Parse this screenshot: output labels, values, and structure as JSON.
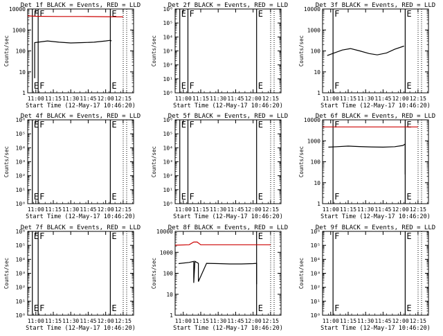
{
  "window": {
    "title": "Det 1f BLACK = Events, RED = LLD"
  },
  "chart_data": [
    {
      "type": "line",
      "title": "Det 1f BLACK = Events, RED = LLD",
      "xlabel": "Start Time (12-May-17 10:46:20)",
      "ylabel": "Counts/sec",
      "yscale": "log",
      "ylim": [
        1,
        10000
      ],
      "y_ticks": [
        "1",
        "10",
        "100",
        "1000",
        "10000"
      ],
      "x_ticks": [
        "11:00",
        "11:15",
        "11:30",
        "11:45",
        "12:00",
        "12:15"
      ],
      "events_color": "#000000",
      "lld_color": "#cc0000",
      "markers": [
        {
          "label": "E",
          "time": "10:57"
        },
        {
          "label": "F",
          "time": "11:02"
        },
        {
          "label": "E",
          "time": "12:04"
        }
      ],
      "series": [
        {
          "name": "Events",
          "x": [
            "10:59",
            "10:59",
            "11:02",
            "11:10",
            "11:20",
            "11:30",
            "11:40",
            "11:50",
            "12:00",
            "12:04",
            "12:05"
          ],
          "y": [
            5,
            250,
            260,
            300,
            260,
            240,
            250,
            260,
            300,
            320,
            300
          ]
        },
        {
          "name": "LLD",
          "x": [
            "10:53",
            "11:00",
            "11:20",
            "11:40",
            "12:00",
            "12:15"
          ],
          "y": [
            4700,
            4500,
            4400,
            4400,
            4300,
            4200
          ]
        }
      ]
    },
    {
      "type": "line",
      "title": "Det 2f BLACK = Events, RED = LLD",
      "xlabel": "Start Time (12-May-17 10:46:20)",
      "ylabel": "Counts/sec",
      "yscale": "log",
      "ylim": [
        1,
        1000000
      ],
      "y_ticks": [
        "10⁰",
        "10¹",
        "10²",
        "10³",
        "10⁴",
        "10⁵",
        "10⁶"
      ],
      "x_ticks": [
        "11:00",
        "11:15",
        "11:30",
        "11:45",
        "12:00",
        "12:15"
      ],
      "events_color": "#000000",
      "lld_color": "#cc0000",
      "markers": [
        {
          "label": "E",
          "time": "10:57"
        },
        {
          "label": "F",
          "time": "11:04"
        },
        {
          "label": "E",
          "time": "12:03"
        }
      ],
      "series": []
    },
    {
      "type": "line",
      "title": "Det 3f BLACK = Events, RED = LLD",
      "xlabel": "Start Time (12-May-17 10:46:20)",
      "ylabel": "Counts/sec",
      "yscale": "log",
      "ylim": [
        1,
        10000
      ],
      "y_ticks": [
        "1",
        "10",
        "100",
        "1000",
        "10000"
      ],
      "x_ticks": [
        "11:00",
        "11:15",
        "11:30",
        "11:45",
        "12:00",
        "12:15"
      ],
      "events_color": "#000000",
      "lld_color": "#cc0000",
      "markers": [
        {
          "label": "F",
          "time": "11:02"
        },
        {
          "label": "E",
          "time": "12:04"
        }
      ],
      "series": [
        {
          "name": "Events",
          "x": [
            "10:57",
            "11:03",
            "11:10",
            "11:17",
            "11:25",
            "11:33",
            "11:40",
            "11:48",
            "11:55",
            "12:03"
          ],
          "y": [
            60,
            80,
            110,
            130,
            100,
            75,
            65,
            80,
            120,
            170
          ]
        }
      ]
    },
    {
      "type": "line",
      "title": "Det 4f BLACK = Events, RED = LLD",
      "xlabel": "Start Time (12-May-17 10:46:20)",
      "ylabel": "Counts/sec",
      "yscale": "log",
      "ylim": [
        1,
        1000000
      ],
      "y_ticks": [
        "10⁰",
        "10¹",
        "10²",
        "10³",
        "10⁴",
        "10⁵",
        "10⁶"
      ],
      "x_ticks": [
        "11:00",
        "11:15",
        "11:30",
        "11:45",
        "12:00",
        "12:15"
      ],
      "events_color": "#000000",
      "lld_color": "#cc0000",
      "markers": [
        {
          "label": "E",
          "time": "10:57"
        },
        {
          "label": "F",
          "time": "11:02"
        },
        {
          "label": "E",
          "time": "12:04"
        }
      ],
      "series": []
    },
    {
      "type": "line",
      "title": "Det 5f BLACK = Events, RED = LLD",
      "xlabel": "Start Time (12-May-17 10:46:20)",
      "ylabel": "Counts/sec",
      "yscale": "log",
      "ylim": [
        1,
        1000000
      ],
      "y_ticks": [
        "10⁰",
        "10¹",
        "10²",
        "10³",
        "10⁴",
        "10⁵",
        "10⁶"
      ],
      "x_ticks": [
        "11:00",
        "11:15",
        "11:30",
        "11:45",
        "12:00",
        "12:15"
      ],
      "events_color": "#000000",
      "lld_color": "#cc0000",
      "markers": [
        {
          "label": "E",
          "time": "10:57"
        },
        {
          "label": "F",
          "time": "11:04"
        },
        {
          "label": "E",
          "time": "12:03"
        }
      ],
      "series": []
    },
    {
      "type": "line",
      "title": "Det 6f BLACK = Events, RED = LLD",
      "xlabel": "Start Time (12-May-17 10:46:20)",
      "ylabel": "Counts/sec",
      "yscale": "log",
      "ylim": [
        1,
        10000
      ],
      "y_ticks": [
        "1",
        "10",
        "100",
        "1000",
        "10000"
      ],
      "x_ticks": [
        "11:00",
        "11:15",
        "11:30",
        "11:45",
        "12:00",
        "12:15"
      ],
      "events_color": "#000000",
      "lld_color": "#cc0000",
      "markers": [
        {
          "label": "F",
          "time": "11:02"
        },
        {
          "label": "E",
          "time": "12:04"
        }
      ],
      "series": [
        {
          "name": "Events",
          "x": [
            "10:58",
            "11:05",
            "11:15",
            "11:25",
            "11:35",
            "11:45",
            "11:55",
            "12:02",
            "12:04",
            "12:04"
          ],
          "y": [
            500,
            520,
            560,
            530,
            510,
            500,
            520,
            600,
            700,
            25
          ]
        },
        {
          "name": "LLD",
          "x": [
            "10:53",
            "11:00",
            "11:20",
            "11:40",
            "12:00",
            "12:15"
          ],
          "y": [
            4600,
            4600,
            4600,
            4600,
            4600,
            4600
          ]
        }
      ]
    },
    {
      "type": "line",
      "title": "Det 7f BLACK = Events, RED = LLD",
      "xlabel": "Start Time (12-May-17 10:46:20)",
      "ylabel": "Counts/sec",
      "yscale": "log",
      "ylim": [
        1,
        1000000
      ],
      "y_ticks": [
        "10⁰",
        "10¹",
        "10²",
        "10³",
        "10⁴",
        "10⁵",
        "10⁶"
      ],
      "x_ticks": [
        "11:00",
        "11:15",
        "11:30",
        "11:45",
        "12:00",
        "12:15"
      ],
      "events_color": "#000000",
      "lld_color": "#cc0000",
      "markers": [
        {
          "label": "E",
          "time": "10:57"
        },
        {
          "label": "F",
          "time": "11:02"
        },
        {
          "label": "E",
          "time": "12:04"
        }
      ],
      "series": []
    },
    {
      "type": "line",
      "title": "Det 8f BLACK = Events, RED = LLD",
      "xlabel": "Start Time (12-May-17 10:46:20)",
      "ylabel": "Counts/sec",
      "yscale": "log",
      "ylim": [
        1,
        10000
      ],
      "y_ticks": [
        "1",
        "10",
        "100",
        "1000",
        "10000"
      ],
      "x_ticks": [
        "11:00",
        "11:15",
        "11:30",
        "11:45",
        "12:00",
        "12:15"
      ],
      "events_color": "#000000",
      "lld_color": "#cc0000",
      "markers": [
        {
          "label": "E",
          "time": "12:03"
        }
      ],
      "series": [
        {
          "name": "Events",
          "x": [
            "10:56",
            "11:05",
            "11:09",
            "11:09",
            "11:10",
            "11:13",
            "11:13",
            "11:20",
            "11:30",
            "11:40",
            "11:50",
            "12:00",
            "12:03",
            "12:03"
          ],
          "y": [
            290,
            330,
            370,
            35,
            370,
            300,
            40,
            300,
            290,
            280,
            280,
            290,
            300,
            30
          ]
        },
        {
          "name": "LLD",
          "x": [
            "10:53",
            "11:05",
            "11:09",
            "11:12",
            "11:15",
            "11:30",
            "11:45",
            "12:00",
            "12:15"
          ],
          "y": [
            2200,
            2300,
            3100,
            3100,
            2300,
            2300,
            2300,
            2300,
            2300
          ]
        }
      ]
    },
    {
      "type": "line",
      "title": "Det 9f BLACK = Events, RED = LLD",
      "xlabel": "Start Time (12-May-17 10:46:20)",
      "ylabel": "Counts/sec",
      "yscale": "log",
      "ylim": [
        1,
        1000000
      ],
      "y_ticks": [
        "10⁰",
        "10¹",
        "10²",
        "10³",
        "10⁴",
        "10⁵",
        "10⁶"
      ],
      "x_ticks": [
        "11:00",
        "11:15",
        "11:30",
        "11:45",
        "12:00",
        "12:15"
      ],
      "events_color": "#000000",
      "lld_color": "#cc0000",
      "markers": [
        {
          "label": "F",
          "time": "11:02"
        },
        {
          "label": "E",
          "time": "12:04"
        }
      ],
      "series": []
    }
  ]
}
